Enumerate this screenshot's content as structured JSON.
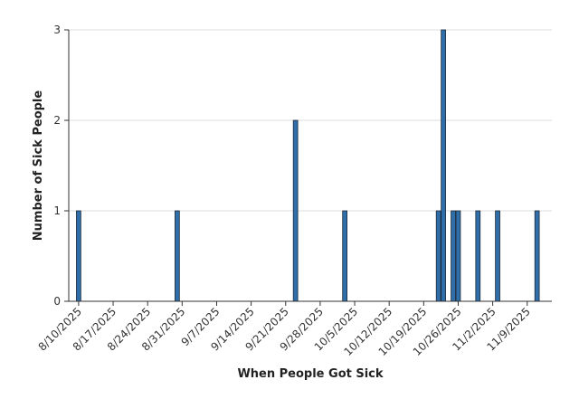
{
  "chart_data": {
    "type": "bar",
    "title": "",
    "xlabel": "When People Got Sick",
    "ylabel": "Number of Sick People",
    "x_axis_type": "date",
    "xlim": [
      "2025-08-08",
      "2025-11-14"
    ],
    "ylim": [
      0,
      3
    ],
    "y_ticks": [
      0,
      1,
      2,
      3
    ],
    "x_ticks": [
      "2025-08-10",
      "2025-08-17",
      "2025-08-24",
      "2025-08-31",
      "2025-09-07",
      "2025-09-14",
      "2025-09-21",
      "2025-09-28",
      "2025-10-05",
      "2025-10-12",
      "2025-10-19",
      "2025-10-26",
      "2025-11-02",
      "2025-11-09"
    ],
    "x_tick_labels": [
      "8/10/2025",
      "8/17/2025",
      "8/24/2025",
      "8/31/2025",
      "9/7/2025",
      "9/14/2025",
      "9/21/2025",
      "9/28/2025",
      "10/5/2025",
      "10/12/2025",
      "10/19/2025",
      "10/26/2025",
      "11/2/2025",
      "11/9/2025"
    ],
    "grid": "horizontal",
    "bar_color": "#2f6ea8",
    "bar_stroke": "#1d2a3a",
    "dates": [
      "2025-08-10",
      "2025-08-30",
      "2025-09-23",
      "2025-10-03",
      "2025-10-22",
      "2025-10-23",
      "2025-10-25",
      "2025-10-26",
      "2025-10-30",
      "2025-11-03",
      "2025-11-11"
    ],
    "values": [
      1,
      1,
      2,
      1,
      1,
      3,
      1,
      1,
      1,
      1,
      1
    ]
  }
}
